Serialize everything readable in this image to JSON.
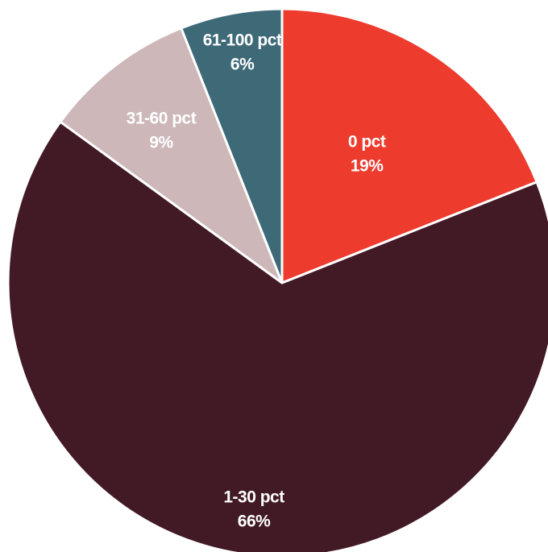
{
  "chart_data": {
    "type": "pie",
    "title": "",
    "start_angle_deg": 0,
    "direction": "clockwise",
    "slices": [
      {
        "label": "0 pct",
        "value": 19,
        "value_label": "19%",
        "color": "#ED3B2E"
      },
      {
        "label": "1-30 pct",
        "value": 66,
        "value_label": "66%",
        "color": "#421A26"
      },
      {
        "label": "31-60 pct",
        "value": 9,
        "value_label": "9%",
        "color": "#CDB7B9"
      },
      {
        "label": "61-100 pct",
        "value": 6,
        "value_label": "6%",
        "color": "#3E6A78"
      }
    ]
  }
}
